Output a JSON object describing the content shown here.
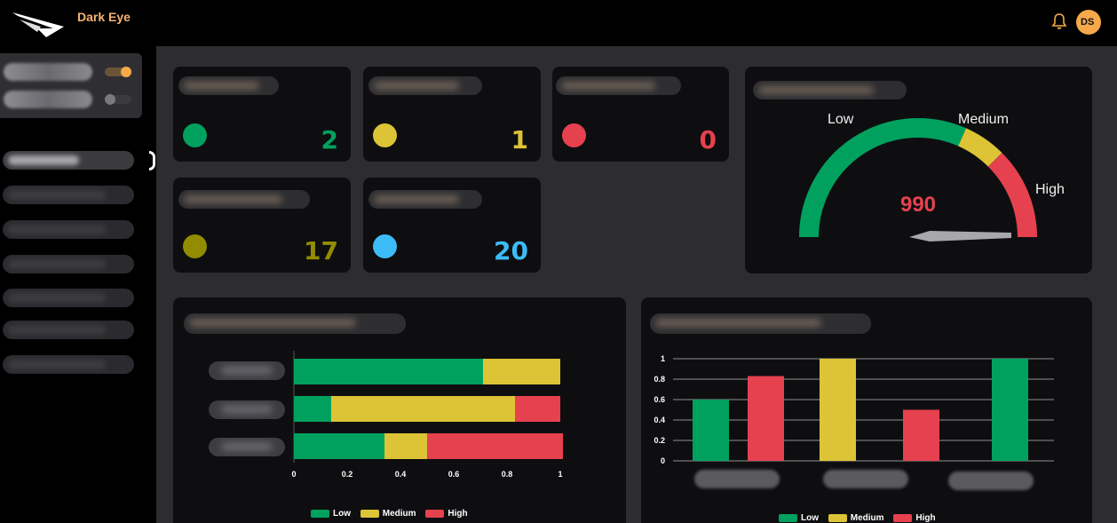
{
  "app": {
    "name": "Dark Eye",
    "user_initials": "DS"
  },
  "colors": {
    "low": "#00a15e",
    "medium": "#dcc436",
    "high": "#e6414f",
    "olive": "#928c00",
    "blue": "#3cbcf6",
    "brand": "#f6b374"
  },
  "stats": [
    {
      "color": "low",
      "value": "2"
    },
    {
      "color": "medium",
      "value": "1"
    },
    {
      "color": "high",
      "value": "0"
    },
    {
      "color": "olive",
      "value": "17"
    },
    {
      "color": "blue",
      "value": "20"
    }
  ],
  "gauge": {
    "value": "990",
    "labels": {
      "low": "Low",
      "medium": "Medium",
      "high": "High"
    }
  },
  "legend": {
    "low": "Low",
    "medium": "Medium",
    "high": "High"
  },
  "chart_data": [
    {
      "type": "bar",
      "orientation": "horizontal",
      "stacked": true,
      "xlim": [
        0,
        1
      ],
      "xticks": [
        "0",
        "0.2",
        "0.4",
        "0.6",
        "0.8",
        "1"
      ],
      "categories": [
        "",
        "",
        ""
      ],
      "series": [
        {
          "name": "Low",
          "values": [
            0.71,
            0.14,
            0.34
          ]
        },
        {
          "name": "Medium",
          "values": [
            0.29,
            0.69,
            0.16
          ]
        },
        {
          "name": "High",
          "values": [
            0.0,
            0.17,
            0.51
          ]
        }
      ],
      "legend_position": "bottom"
    },
    {
      "type": "bar",
      "orientation": "vertical",
      "ylim": [
        0,
        1
      ],
      "yticks": [
        "0",
        "0.2",
        "0.4",
        "0.6",
        "0.8",
        "1"
      ],
      "categories": [
        "",
        "",
        ""
      ],
      "bars": [
        {
          "series": "Low",
          "category": 0,
          "value": 0.6
        },
        {
          "series": "High",
          "category": 0,
          "value": 0.83
        },
        {
          "series": "Medium",
          "category": 1,
          "value": 1.0
        },
        {
          "series": "High",
          "category": 2,
          "value": 0.5
        },
        {
          "series": "Low",
          "category": 2,
          "value": 1.0
        }
      ],
      "legend_position": "bottom"
    }
  ]
}
